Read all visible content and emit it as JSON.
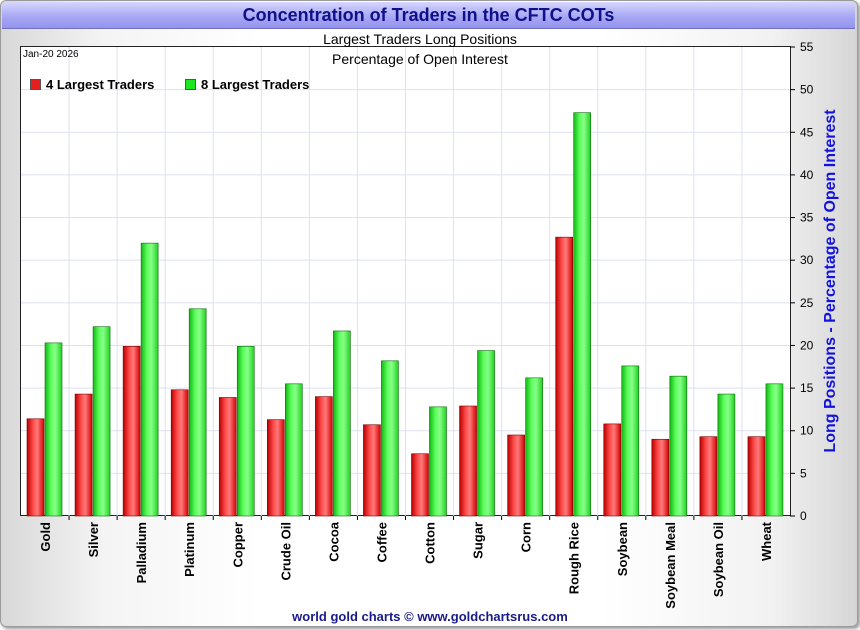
{
  "title": "Concentration of Traders in the CFTC COTs",
  "subtitle_1": "Largest Traders Long Positions",
  "subtitle_2": "Percentage of Open Interest",
  "date_label": "Jan-20  2026",
  "y_axis_label": "Long Positions - Percentage of Open Interest",
  "footer": "world gold charts © www.goldchartsrus.com",
  "legend": {
    "series_1": "4 Largest Traders",
    "series_2": "8 Largest Traders"
  },
  "colors": {
    "series_1": "#e61e1e",
    "series_2": "#1ee61e",
    "title_text": "#10108a",
    "axis_label": "#1212dd"
  },
  "chart_data": {
    "type": "bar",
    "categories": [
      "Gold",
      "Silver",
      "Palladium",
      "Platinum",
      "Copper",
      "Crude Oil",
      "Cocoa",
      "Coffee",
      "Cotton",
      "Sugar",
      "Corn",
      "Rough Rice",
      "Soybean",
      "Soybean Meal",
      "Soybean Oil",
      "Wheat"
    ],
    "series": [
      {
        "name": "4 Largest Traders",
        "values": [
          11.4,
          14.3,
          19.9,
          14.8,
          13.9,
          11.3,
          14.0,
          10.7,
          7.3,
          12.9,
          9.5,
          32.7,
          10.8,
          9.0,
          9.3,
          9.3
        ]
      },
      {
        "name": "8 Largest Traders",
        "values": [
          20.3,
          22.2,
          32.0,
          24.3,
          19.9,
          15.5,
          21.7,
          18.2,
          12.8,
          19.4,
          16.2,
          47.3,
          17.6,
          16.4,
          14.3,
          15.5
        ]
      }
    ],
    "ylim": [
      0,
      55
    ],
    "yticks": [
      0,
      5,
      10,
      15,
      20,
      25,
      30,
      35,
      40,
      45,
      50,
      55
    ],
    "y_axis_side": "right",
    "grid": true,
    "legend_position": "top-left"
  }
}
